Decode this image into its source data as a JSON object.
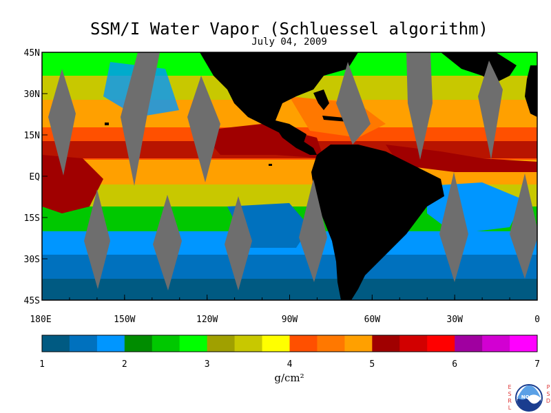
{
  "title": "SSM/I Water Vapor (Schluessel algorithm)",
  "subtitle": "July 04, 2009",
  "units": "g/cm²",
  "map": {
    "lon_range": [
      -180,
      0
    ],
    "lat_range": [
      -45,
      45
    ],
    "lat_ticks": [
      {
        "value": 45,
        "label": "45N"
      },
      {
        "value": 30,
        "label": "30N"
      },
      {
        "value": 15,
        "label": "15N"
      },
      {
        "value": 0,
        "label": "EQ"
      },
      {
        "value": -15,
        "label": "15S"
      },
      {
        "value": -30,
        "label": "30S"
      },
      {
        "value": -45,
        "label": "45S"
      }
    ],
    "lon_ticks": [
      {
        "value": -180,
        "label": "180E"
      },
      {
        "value": -150,
        "label": "150W"
      },
      {
        "value": -120,
        "label": "120W"
      },
      {
        "value": -90,
        "label": "90W"
      },
      {
        "value": -60,
        "label": "60W"
      },
      {
        "value": -30,
        "label": "30W"
      },
      {
        "value": 0,
        "label": "0"
      }
    ],
    "land_color": "#000000",
    "missing_color": "#6e6e6e"
  },
  "colorbar": {
    "min": 1,
    "max": 7,
    "labels": [
      "1",
      "2",
      "3",
      "4",
      "5",
      "6",
      "7"
    ],
    "colors": [
      "#005a82",
      "#0071be",
      "#0096ff",
      "#008c00",
      "#00c800",
      "#00ff00",
      "#a0a000",
      "#c8c800",
      "#ffff00",
      "#ff5000",
      "#ff7800",
      "#ffa000",
      "#a00000",
      "#d20000",
      "#ff0000",
      "#a000a0",
      "#d200d2",
      "#ff00ff"
    ]
  },
  "logo": {
    "left_text": "ESRL",
    "right_text": "PSD",
    "badge_text": "NOAA"
  }
}
